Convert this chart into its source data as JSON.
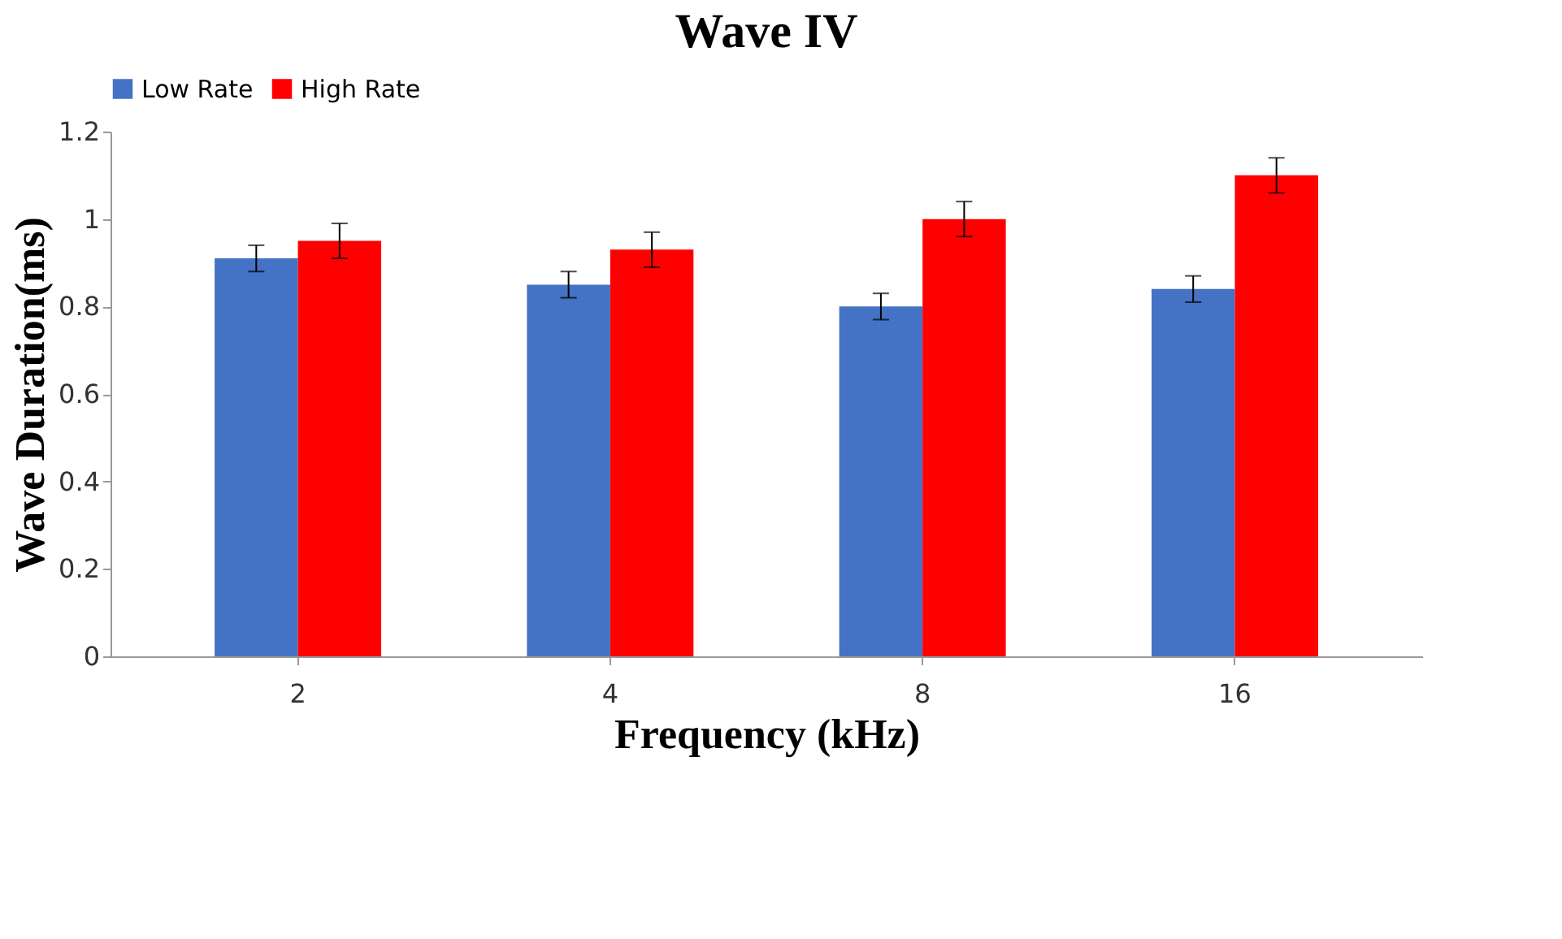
{
  "chart_data": {
    "type": "bar",
    "title": "Wave IV",
    "xlabel": "Frequency (kHz)",
    "ylabel": "Wave Duration(ms)",
    "categories": [
      "2",
      "4",
      "8",
      "16"
    ],
    "series": [
      {
        "name": "Low Rate",
        "color": "#4472c4",
        "values": [
          0.91,
          0.85,
          0.8,
          0.84
        ],
        "errors": [
          0.03,
          0.03,
          0.03,
          0.03
        ]
      },
      {
        "name": "High Rate",
        "color": "#ff0000",
        "values": [
          0.95,
          0.93,
          1.0,
          1.1
        ],
        "errors": [
          0.04,
          0.04,
          0.04,
          0.04
        ]
      }
    ],
    "ylim": [
      0,
      1.2
    ],
    "yticks": [
      0,
      0.2,
      0.4,
      0.6,
      0.8,
      1,
      1.2
    ],
    "grid": false,
    "legend": "top"
  }
}
